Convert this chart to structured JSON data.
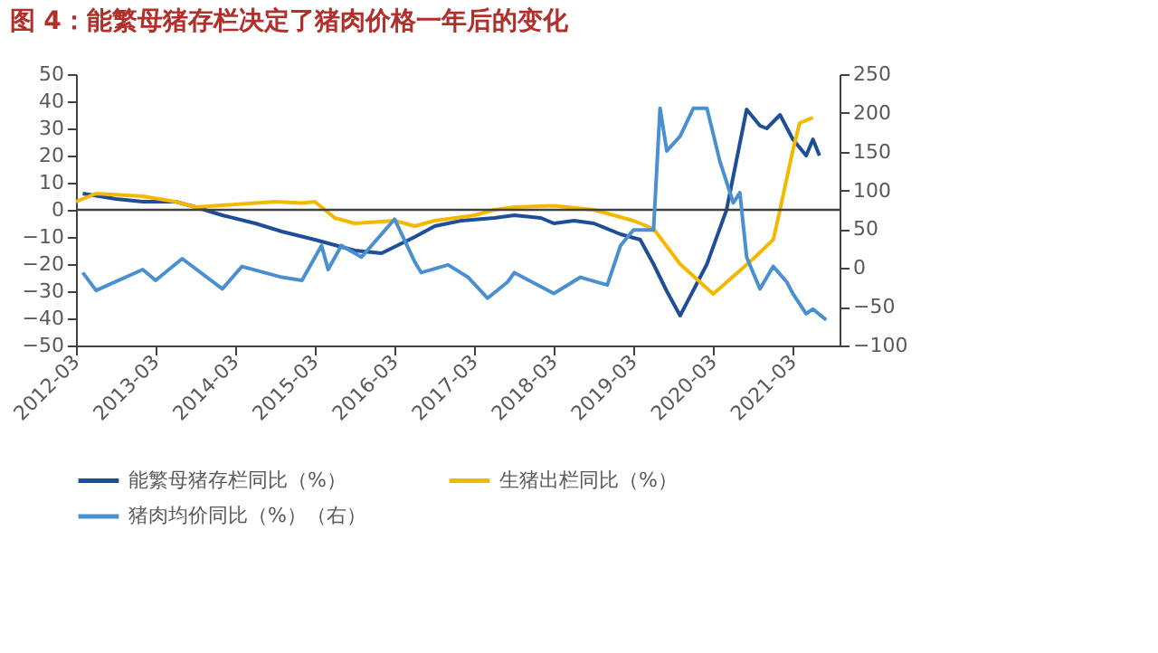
{
  "chart_data": {
    "type": "line",
    "title": "图 4：能繁母猪存栏决定了猪肉价格一年后的变化",
    "xlim": [
      "2012-03",
      "2021-10"
    ],
    "xticks": [
      "2012-03",
      "2013-03",
      "2014-03",
      "2015-03",
      "2016-03",
      "2017-03",
      "2018-03",
      "2019-03",
      "2020-03",
      "2021-03"
    ],
    "ylim": [
      -50,
      50
    ],
    "yticks": [
      -50,
      -40,
      -30,
      -20,
      -10,
      0,
      10,
      20,
      30,
      40,
      50
    ],
    "y2lim": [
      -100,
      250
    ],
    "y2ticks": [
      -100,
      -50,
      0,
      50,
      100,
      150,
      200,
      250
    ],
    "ref_lines": [
      {
        "axis": "y",
        "value": 0,
        "color": "#404040"
      }
    ],
    "legend": "bottom",
    "grid": false,
    "line_style": "solid",
    "marker": "none",
    "series": [
      {
        "name": "能繁母猪存栏同比（%）",
        "color": "#1f4e99",
        "x": [
          "2012-04",
          "2012-09",
          "2013-01",
          "2013-06",
          "2013-09",
          "2014-01",
          "2014-06",
          "2014-10",
          "2015-03",
          "2015-09",
          "2016-01",
          "2016-06",
          "2016-09",
          "2017-01",
          "2017-06",
          "2017-09",
          "2018-01",
          "2018-03",
          "2018-06",
          "2018-09",
          "2019-01",
          "2019-04",
          "2019-06",
          "2019-08",
          "2019-10",
          "2020-02",
          "2020-05",
          "2020-08",
          "2020-10",
          "2020-11",
          "2021-01",
          "2021-03",
          "2021-05",
          "2021-06",
          "2021-07"
        ],
        "values": [
          6,
          4,
          3,
          3,
          1,
          -2,
          -5,
          -8,
          -11,
          -15,
          -16,
          -10,
          -6,
          -4,
          -3,
          -2,
          -3,
          -5,
          -4,
          -5,
          -9,
          -11,
          -20,
          -30,
          -39,
          -20,
          0,
          37,
          31,
          30,
          35,
          26,
          20,
          26,
          20
        ]
      },
      {
        "name": "生猪出栏同比（%）",
        "color": "#f5b800",
        "x": [
          "2012-03",
          "2012-06",
          "2013-01",
          "2013-06",
          "2013-09",
          "2014-03",
          "2014-09",
          "2015-01",
          "2015-03",
          "2015-06",
          "2015-09",
          "2016-03",
          "2016-06",
          "2016-09",
          "2017-03",
          "2017-06",
          "2017-09",
          "2018-03",
          "2018-09",
          "2019-03",
          "2019-06",
          "2019-10",
          "2020-03",
          "2020-09",
          "2020-12",
          "2021-01",
          "2021-03",
          "2021-04",
          "2021-06"
        ],
        "values": [
          3,
          6,
          5,
          3,
          1,
          2,
          3,
          2.5,
          3,
          -3,
          -5,
          -4,
          -6,
          -4,
          -2,
          0,
          1,
          1.5,
          0,
          -4,
          -7,
          -20,
          -31,
          -18,
          -11,
          0,
          22,
          32,
          34
        ]
      },
      {
        "name": "猪肉均价同比（%）（右）",
        "color": "#4a90d0",
        "axis": "y2",
        "x": [
          "2012-04",
          "2012-06",
          "2013-01",
          "2013-03",
          "2013-07",
          "2014-01",
          "2014-04",
          "2014-10",
          "2015-01",
          "2015-04",
          "2015-05",
          "2015-07",
          "2015-10",
          "2016-03",
          "2016-06",
          "2016-07",
          "2016-11",
          "2017-02",
          "2017-05",
          "2017-08",
          "2017-09",
          "2018-03",
          "2018-07",
          "2018-11",
          "2019-01",
          "2019-03",
          "2019-06",
          "2019-07",
          "2019-08",
          "2019-10",
          "2019-12",
          "2020-02",
          "2020-04",
          "2020-06",
          "2020-07",
          "2020-08",
          "2020-10",
          "2020-12",
          "2021-02",
          "2021-03",
          "2021-05",
          "2021-06",
          "2021-08"
        ],
        "values": [
          -6,
          -29,
          -2,
          -16,
          12,
          -27,
          2,
          -12,
          -16,
          29,
          -2,
          29,
          14,
          63,
          8,
          -6,
          4,
          -12,
          -39,
          -18,
          -6,
          -33,
          -12,
          -22,
          29,
          49,
          49,
          206,
          151,
          170,
          206,
          206,
          137,
          84,
          97,
          14,
          -27,
          2,
          -18,
          -33,
          -59,
          -53,
          -67
        ]
      }
    ]
  }
}
